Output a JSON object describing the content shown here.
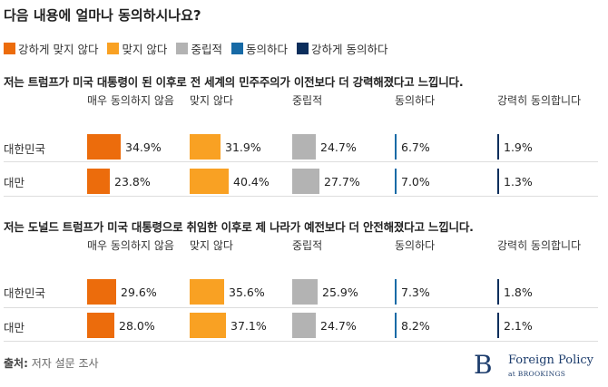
{
  "title": "다음 내용에 얼마나 동의하시나요?",
  "legend": [
    {
      "label": "강하게 맞지 않다",
      "color": "#ec6c0c"
    },
    {
      "label": "맞지 않다",
      "color": "#f9a123"
    },
    {
      "label": "중립적",
      "color": "#b3b3b3"
    },
    {
      "label": "동의하다",
      "color": "#176aa6"
    },
    {
      "label": "강하게 동의하다",
      "color": "#0b2e5c"
    }
  ],
  "chart_data": [
    {
      "type": "table",
      "title": "저는 트럼프가 미국 대통령이 된 이후로 전 세계의 민주주의가 이전보다 더 강력해졌다고 느낍니다.",
      "columns": [
        "매우 동의하지 않음",
        "맞지 않다",
        "중립적",
        "동의하다",
        "강력히 동의합니다"
      ],
      "rows": [
        {
          "label": "대한민국",
          "values": [
            34.9,
            31.9,
            24.7,
            6.7,
            1.9
          ],
          "labels": [
            "34.9%",
            "31.9%",
            "24.7%",
            "6.7%",
            "1.9%"
          ]
        },
        {
          "label": "대만",
          "values": [
            23.8,
            40.4,
            27.7,
            7.0,
            1.3
          ],
          "labels": [
            "23.8%",
            "40.4%",
            "27.7%",
            "7.0%",
            "1.3%"
          ]
        }
      ]
    },
    {
      "type": "table",
      "title": "저는 도널드 트럼프가 미국 대통령으로 취임한 이후로 제 나라가 예전보다 더 안전해졌다고 느낍니다.",
      "columns": [
        "매우 동의하지 않음",
        "맞지 않다",
        "중립적",
        "동의하다",
        "강력히 동의합니다"
      ],
      "rows": [
        {
          "label": "대한민국",
          "values": [
            29.6,
            35.6,
            25.9,
            7.3,
            1.8
          ],
          "labels": [
            "29.6%",
            "35.6%",
            "25.9%",
            "7.3%",
            "1.8%"
          ]
        },
        {
          "label": "대만",
          "values": [
            28.0,
            37.1,
            24.7,
            8.2,
            2.1
          ],
          "labels": [
            "28.0%",
            "37.1%",
            "24.7%",
            "8.2%",
            "2.1%"
          ]
        }
      ]
    }
  ],
  "source": {
    "label": "출처:",
    "text": "저자 설문 조사"
  },
  "logo": {
    "mark": "B",
    "name": "Foreign Policy",
    "sub": "at BROOKINGS"
  }
}
